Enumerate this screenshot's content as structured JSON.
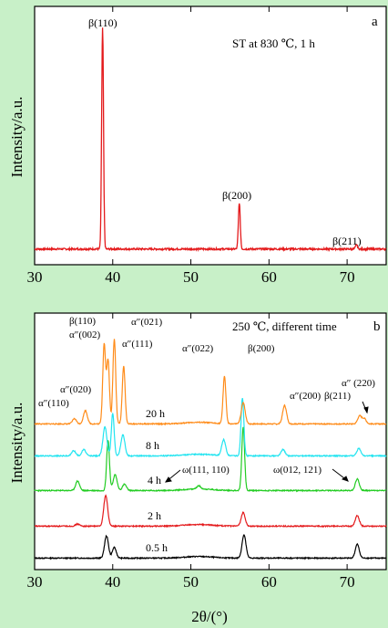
{
  "chart_data": [
    {
      "type": "line",
      "panel_label": "a",
      "condition": "ST at 830 ℃, 1 h",
      "ylabel": "Intensity/a.u.",
      "xlim": [
        30,
        75
      ],
      "xticks": [
        30,
        40,
        50,
        60,
        70
      ],
      "color": "#e41a1c",
      "peaks": [
        {
          "label": "β(110)",
          "x": 38.7,
          "intensity": 100
        },
        {
          "label": "β(200)",
          "x": 56.2,
          "intensity": 21
        },
        {
          "label": "β(211)",
          "x": 71.2,
          "intensity": 2
        }
      ]
    },
    {
      "type": "line",
      "panel_label": "b",
      "condition": "250 ℃, different time",
      "ylabel": "Intensity/a.u.",
      "xlabel": "2θ/(°)",
      "xlim": [
        30,
        75
      ],
      "xticks": [
        30,
        40,
        50,
        60,
        70
      ],
      "series": [
        {
          "name": "0.5 h",
          "color": "#000000",
          "baseline": 0,
          "peaks": [
            [
              39.2,
              42
            ],
            [
              40.2,
              20
            ],
            [
              56.8,
              44
            ],
            [
              71.3,
              26
            ]
          ]
        },
        {
          "name": "2 h",
          "color": "#e41a1c",
          "baseline": 1,
          "peaks": [
            [
              39.1,
              58
            ],
            [
              56.7,
              26
            ],
            [
              71.3,
              20
            ],
            [
              35.5,
              4
            ]
          ]
        },
        {
          "name": "4 h",
          "color": "#22cc22",
          "baseline": 2,
          "peaks": [
            [
              35.5,
              18
            ],
            [
              39.4,
              95
            ],
            [
              40.3,
              30
            ],
            [
              41.5,
              12
            ],
            [
              56.7,
              120
            ],
            [
              71.3,
              22
            ],
            [
              51.0,
              6
            ]
          ]
        },
        {
          "name": "8 h",
          "color": "#22e4f0",
          "baseline": 3,
          "peaks": [
            [
              35.0,
              10
            ],
            [
              36.3,
              12
            ],
            [
              39.0,
              55
            ],
            [
              40.0,
              80
            ],
            [
              41.3,
              40
            ],
            [
              54.2,
              30
            ],
            [
              56.6,
              110
            ],
            [
              61.8,
              12
            ],
            [
              71.5,
              14
            ]
          ]
        },
        {
          "name": "20 h",
          "color": "#ff8c1a",
          "baseline": 4,
          "peaks": [
            [
              35.1,
              10
            ],
            [
              36.5,
              25
            ],
            [
              38.9,
              150
            ],
            [
              39.4,
              120
            ],
            [
              40.2,
              160
            ],
            [
              41.4,
              110
            ],
            [
              54.3,
              90
            ],
            [
              56.7,
              40
            ],
            [
              62.0,
              35
            ],
            [
              71.6,
              15
            ],
            [
              72.2,
              10
            ]
          ]
        }
      ],
      "annotations": [
        "β(110)",
        "α″(021)",
        "α″(002)",
        "α″(111)",
        "α″(022)",
        "β(200)",
        "α″(020)",
        "α″(110)",
        "α″(200)",
        "α″ (220)",
        "β(211)",
        "ω(111, 110)",
        "ω(012, 121)"
      ]
    }
  ]
}
